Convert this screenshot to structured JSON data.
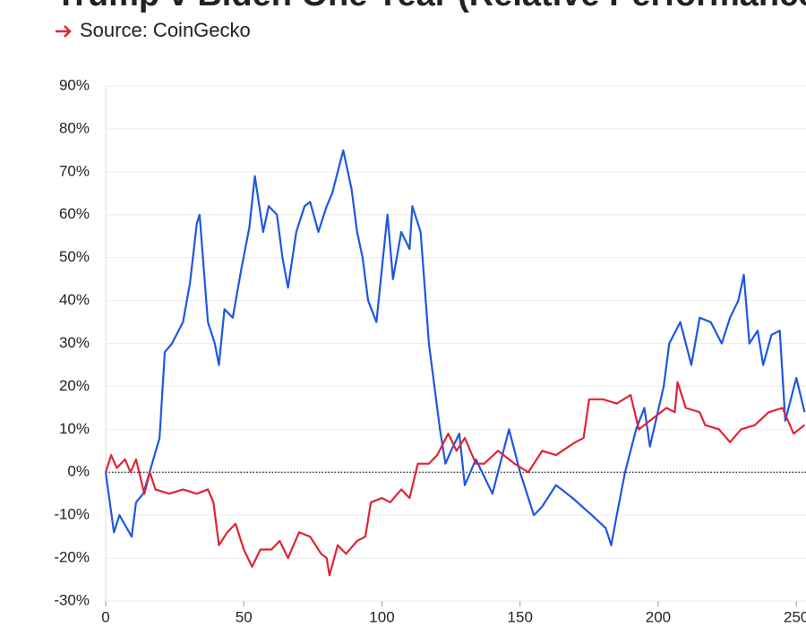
{
  "chart_data": {
    "type": "line",
    "title": "Trump v Biden One Year (Relative Performance)",
    "subtitle": "Source: CoinGecko",
    "xlim": [
      0,
      253.5
    ],
    "xticks": [
      0,
      50,
      100,
      150,
      200,
      250
    ],
    "ylim": [
      -30,
      90
    ],
    "yticks": [
      {
        "value": -30,
        "label": "-30%"
      },
      {
        "value": -20,
        "label": "-20%"
      },
      {
        "value": -10,
        "label": "-10%"
      },
      {
        "value": 0,
        "label": "0%"
      },
      {
        "value": 10,
        "label": "10%"
      },
      {
        "value": 20,
        "label": "20%"
      },
      {
        "value": 30,
        "label": "30%"
      },
      {
        "value": 40,
        "label": "40%"
      },
      {
        "value": 50,
        "label": "50%"
      },
      {
        "value": 60,
        "label": "60%"
      },
      {
        "value": 70,
        "label": "70%"
      },
      {
        "value": 80,
        "label": "80%"
      },
      {
        "value": 90,
        "label": "90%"
      }
    ],
    "grid": true,
    "series": [
      {
        "color": "#1f57e0",
        "x": [
          0,
          3,
          5,
          9.4,
          11,
          13.6,
          15,
          19.5,
          21.4,
          24,
          28,
          30.5,
          33,
          34,
          37,
          39.5,
          41,
          43,
          46,
          49,
          52,
          54,
          57,
          59,
          62,
          64,
          66,
          69,
          72,
          74,
          77,
          80,
          82,
          86,
          89,
          91,
          93,
          95,
          98,
          102,
          104,
          107,
          110,
          111,
          114,
          117,
          121,
          123,
          125,
          128,
          130,
          134,
          140,
          146,
          150,
          155,
          158,
          163,
          169,
          176,
          181,
          183,
          185,
          188,
          192,
          195,
          197,
          202,
          204,
          208,
          212,
          215,
          219,
          223,
          226,
          229,
          231,
          233,
          236,
          238,
          241,
          244,
          246,
          250,
          253
        ],
        "values": [
          0,
          -14,
          -10,
          -15,
          -7,
          -5,
          -2,
          8,
          28,
          30,
          35,
          44,
          58,
          60,
          35,
          30,
          25,
          38,
          36,
          47,
          57,
          69,
          56,
          62,
          60,
          50,
          43,
          56,
          62,
          63,
          56,
          62,
          65,
          75,
          66,
          56,
          50,
          40,
          35,
          60,
          45,
          56,
          52,
          62,
          56,
          30,
          10,
          2,
          5,
          9,
          -3,
          3,
          -5,
          10,
          0,
          -10,
          -8,
          -3,
          -6,
          -10,
          -13,
          -17,
          -10,
          0,
          10,
          15,
          6,
          20,
          30,
          35,
          25,
          36,
          35,
          30,
          36,
          40,
          46,
          30,
          33,
          25,
          32,
          33,
          12,
          22,
          14
        ]
      },
      {
        "color": "#e02433",
        "x": [
          0,
          2,
          4,
          7,
          9,
          11,
          14,
          16,
          18,
          23,
          28,
          33,
          37,
          39,
          41,
          44,
          47,
          50,
          53,
          56,
          60,
          63,
          66,
          70,
          74,
          78,
          80,
          81,
          84,
          87,
          91,
          94,
          96,
          100,
          103,
          107,
          110,
          113,
          117,
          120,
          124,
          127,
          130,
          134,
          137,
          142,
          148,
          153,
          158,
          163,
          170,
          173,
          175,
          180,
          185,
          190,
          193,
          197,
          203,
          206,
          207,
          210,
          215,
          217,
          222,
          226,
          230,
          235,
          240,
          245,
          249,
          253
        ],
        "values": [
          0,
          4,
          1,
          3,
          0,
          3,
          -5,
          0,
          -4,
          -5,
          -4,
          -5,
          -4,
          -7,
          -17,
          -14,
          -12,
          -18,
          -22,
          -18,
          -18,
          -16,
          -20,
          -14,
          -15,
          -19,
          -20,
          -24,
          -17,
          -19,
          -16,
          -15,
          -7,
          -6,
          -7,
          -4,
          -6,
          2,
          2,
          4,
          9,
          5,
          8,
          2,
          2,
          5,
          2,
          0,
          5,
          4,
          7,
          8,
          17,
          17,
          16,
          18,
          10,
          12,
          15,
          14,
          21,
          15,
          14,
          11,
          10,
          7,
          10,
          11,
          14,
          15,
          9,
          11
        ]
      }
    ]
  }
}
